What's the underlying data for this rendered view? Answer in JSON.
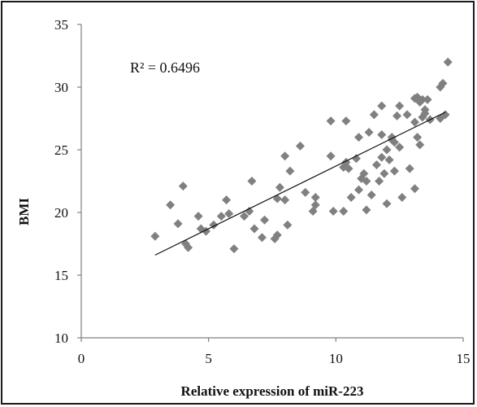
{
  "chart_data": {
    "type": "scatter",
    "title": "",
    "xlabel": "Relative expression of miR-223",
    "ylabel": "BMI",
    "xlim": [
      0,
      15
    ],
    "ylim": [
      10,
      35
    ],
    "x_ticks": [
      "0",
      "5",
      "10",
      "15"
    ],
    "y_ticks": [
      "10",
      "15",
      "20",
      "25",
      "30",
      "35"
    ],
    "grid": false,
    "legend": "none",
    "annotation": "R² = 0.6496",
    "marker": "diamond",
    "marker_color": "#808080",
    "trendline": {
      "type": "linear",
      "x": [
        2.9,
        14.3
      ],
      "y": [
        16.6,
        28.0
      ]
    },
    "points": [
      [
        2.9,
        18.1
      ],
      [
        3.5,
        20.6
      ],
      [
        3.8,
        19.1
      ],
      [
        4.0,
        22.1
      ],
      [
        4.1,
        17.5
      ],
      [
        4.2,
        17.2
      ],
      [
        4.6,
        19.7
      ],
      [
        4.7,
        18.7
      ],
      [
        4.9,
        18.5
      ],
      [
        5.2,
        19.0
      ],
      [
        5.5,
        19.7
      ],
      [
        5.7,
        21.0
      ],
      [
        5.8,
        19.9
      ],
      [
        6.0,
        17.1
      ],
      [
        6.4,
        19.7
      ],
      [
        6.6,
        20.1
      ],
      [
        6.7,
        22.5
      ],
      [
        6.8,
        18.7
      ],
      [
        7.1,
        18.0
      ],
      [
        7.2,
        19.4
      ],
      [
        7.6,
        17.9
      ],
      [
        7.7,
        18.2
      ],
      [
        7.7,
        21.1
      ],
      [
        7.8,
        22.0
      ],
      [
        8.0,
        21.0
      ],
      [
        8.0,
        24.5
      ],
      [
        8.1,
        19.0
      ],
      [
        8.2,
        23.3
      ],
      [
        8.6,
        25.3
      ],
      [
        8.8,
        21.6
      ],
      [
        9.1,
        20.1
      ],
      [
        9.2,
        20.6
      ],
      [
        9.2,
        21.2
      ],
      [
        9.8,
        24.5
      ],
      [
        9.8,
        27.3
      ],
      [
        9.9,
        20.1
      ],
      [
        10.3,
        20.1
      ],
      [
        10.3,
        23.6
      ],
      [
        10.4,
        24.0
      ],
      [
        10.4,
        27.3
      ],
      [
        10.5,
        23.5
      ],
      [
        10.6,
        21.2
      ],
      [
        10.8,
        24.3
      ],
      [
        10.9,
        21.8
      ],
      [
        10.9,
        26.0
      ],
      [
        11.0,
        22.7
      ],
      [
        11.1,
        23.1
      ],
      [
        11.2,
        20.2
      ],
      [
        11.2,
        22.5
      ],
      [
        11.3,
        26.4
      ],
      [
        11.4,
        21.4
      ],
      [
        11.5,
        27.8
      ],
      [
        11.6,
        23.8
      ],
      [
        11.7,
        22.5
      ],
      [
        11.8,
        24.4
      ],
      [
        11.8,
        26.2
      ],
      [
        11.8,
        28.5
      ],
      [
        11.9,
        23.1
      ],
      [
        12.0,
        25.0
      ],
      [
        12.0,
        20.7
      ],
      [
        12.1,
        24.2
      ],
      [
        12.2,
        25.8
      ],
      [
        12.2,
        26.0
      ],
      [
        12.3,
        23.3
      ],
      [
        12.3,
        25.6
      ],
      [
        12.4,
        27.7
      ],
      [
        12.5,
        28.5
      ],
      [
        12.5,
        25.2
      ],
      [
        12.6,
        21.2
      ],
      [
        12.8,
        27.8
      ],
      [
        12.9,
        23.5
      ],
      [
        13.1,
        29.1
      ],
      [
        13.1,
        21.9
      ],
      [
        13.1,
        27.2
      ],
      [
        13.2,
        29.2
      ],
      [
        13.2,
        26.0
      ],
      [
        13.3,
        25.4
      ],
      [
        13.3,
        28.8
      ],
      [
        13.4,
        27.6
      ],
      [
        13.4,
        29.0
      ],
      [
        13.5,
        28.2
      ],
      [
        13.5,
        27.9
      ],
      [
        13.6,
        29.0
      ],
      [
        13.7,
        27.4
      ],
      [
        14.1,
        30.0
      ],
      [
        14.1,
        27.5
      ],
      [
        14.2,
        30.3
      ],
      [
        14.3,
        27.8
      ],
      [
        14.4,
        32.0
      ]
    ]
  }
}
